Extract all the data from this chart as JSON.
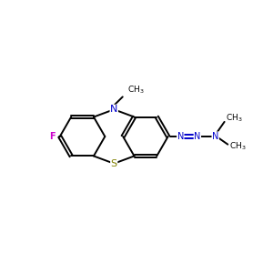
{
  "background_color": "#ffffff",
  "bond_color": "#000000",
  "nitrogen_color": "#0000cc",
  "sulfur_color": "#808000",
  "fluorine_color": "#cc00cc",
  "fig_size": [
    3.0,
    3.0
  ],
  "dpi": 100,
  "xlim": [
    0,
    12
  ],
  "ylim": [
    0,
    10
  ]
}
